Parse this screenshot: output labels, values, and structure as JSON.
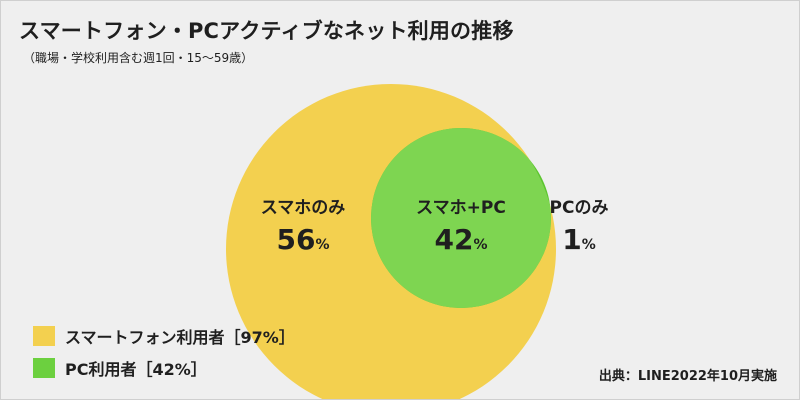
{
  "chart_data": {
    "type": "venn",
    "title": "スマートフォン・PCアクティブなネット利用の推移",
    "subtitle": "（職場・学校利用含む週1回・15〜59歳）",
    "sets": [
      {
        "name": "スマートフォン利用者［97%］",
        "color": "#f3d04f"
      },
      {
        "name": "PC利用者［42%］",
        "color": "#6cd03f"
      }
    ],
    "regions": [
      {
        "label": "スマホのみ",
        "value": 56,
        "unit": "%"
      },
      {
        "label": "スマホ+PC",
        "value": 42,
        "unit": "%"
      },
      {
        "label": "PCのみ",
        "value": 1,
        "unit": "%"
      }
    ],
    "source": "出典：LINE2022年10月実施"
  }
}
